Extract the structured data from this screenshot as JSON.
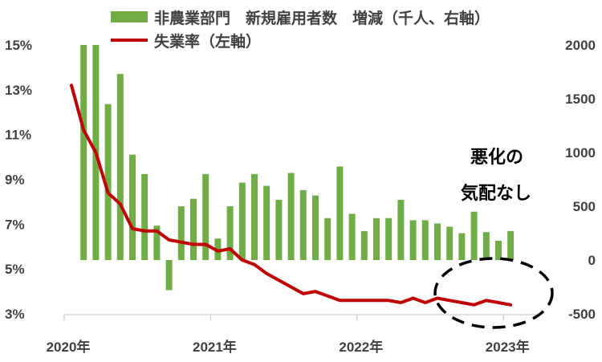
{
  "chart_data": {
    "type": "bar+line",
    "legend": {
      "placement": "top",
      "bar_label": "非農業部門　新規雇用者数　増減（千人、右軸）",
      "line_label": "失業率（左軸）"
    },
    "colors": {
      "bar": "#70ad47",
      "line": "#c00000"
    },
    "x_axis": {
      "tick_labels": [
        "2020年",
        "2021年",
        "2022年",
        "2023年"
      ]
    },
    "y_left": {
      "unit": "%",
      "range": [
        3,
        15
      ],
      "tick_labels": [
        "15%",
        "13%",
        "11%",
        "9%",
        "7%",
        "5%",
        "3%"
      ]
    },
    "y_right": {
      "unit": "千人",
      "range": [
        -500,
        2000
      ],
      "tick_labels": [
        "2000",
        "1500",
        "1000",
        "500",
        "0",
        "-500"
      ]
    },
    "months": [
      "2020-01",
      "2020-02",
      "2020-03",
      "2020-04",
      "2020-05",
      "2020-06",
      "2020-07",
      "2020-08",
      "2020-09",
      "2020-10",
      "2020-11",
      "2020-12",
      "2021-01",
      "2021-02",
      "2021-03",
      "2021-04",
      "2021-05",
      "2021-06",
      "2021-07",
      "2021-08",
      "2021-09",
      "2021-10",
      "2021-11",
      "2021-12",
      "2022-01",
      "2022-02",
      "2022-03",
      "2022-04",
      "2022-05",
      "2022-06",
      "2022-07",
      "2022-08",
      "2022-09",
      "2022-10",
      "2022-11",
      "2022-12",
      "2023-01",
      "2023-02",
      "2023-03",
      "2023-04"
    ],
    "series": [
      {
        "name": "非農業部門　新規雇用者数　増減（千人、右軸）",
        "axis": "right",
        "kind": "bar",
        "bar_start_index": 1,
        "values": [
          2000,
          2000,
          1450,
          1730,
          980,
          800,
          320,
          -280,
          500,
          570,
          800,
          200,
          500,
          720,
          800,
          690,
          560,
          810,
          650,
          600,
          390,
          870,
          430,
          270,
          390,
          390,
          560,
          370,
          370,
          340,
          310,
          250,
          450,
          260,
          180,
          270
        ]
      },
      {
        "name": "失業率（左軸）",
        "axis": "left",
        "kind": "line",
        "values": [
          13.2,
          11.2,
          10.2,
          8.4,
          7.9,
          6.8,
          6.7,
          6.7,
          6.3,
          6.2,
          6.1,
          6.1,
          5.8,
          5.9,
          5.4,
          5.2,
          4.8,
          4.5,
          4.2,
          3.9,
          4.0,
          3.8,
          3.6,
          3.6,
          3.6,
          3.6,
          3.6,
          3.5,
          3.7,
          3.5,
          3.7,
          3.6,
          3.5,
          3.4,
          3.6,
          3.5,
          3.4
        ]
      }
    ],
    "annotation": {
      "lines": [
        "悪化の",
        "気配なし"
      ],
      "shape": "dashed-ellipse"
    }
  }
}
